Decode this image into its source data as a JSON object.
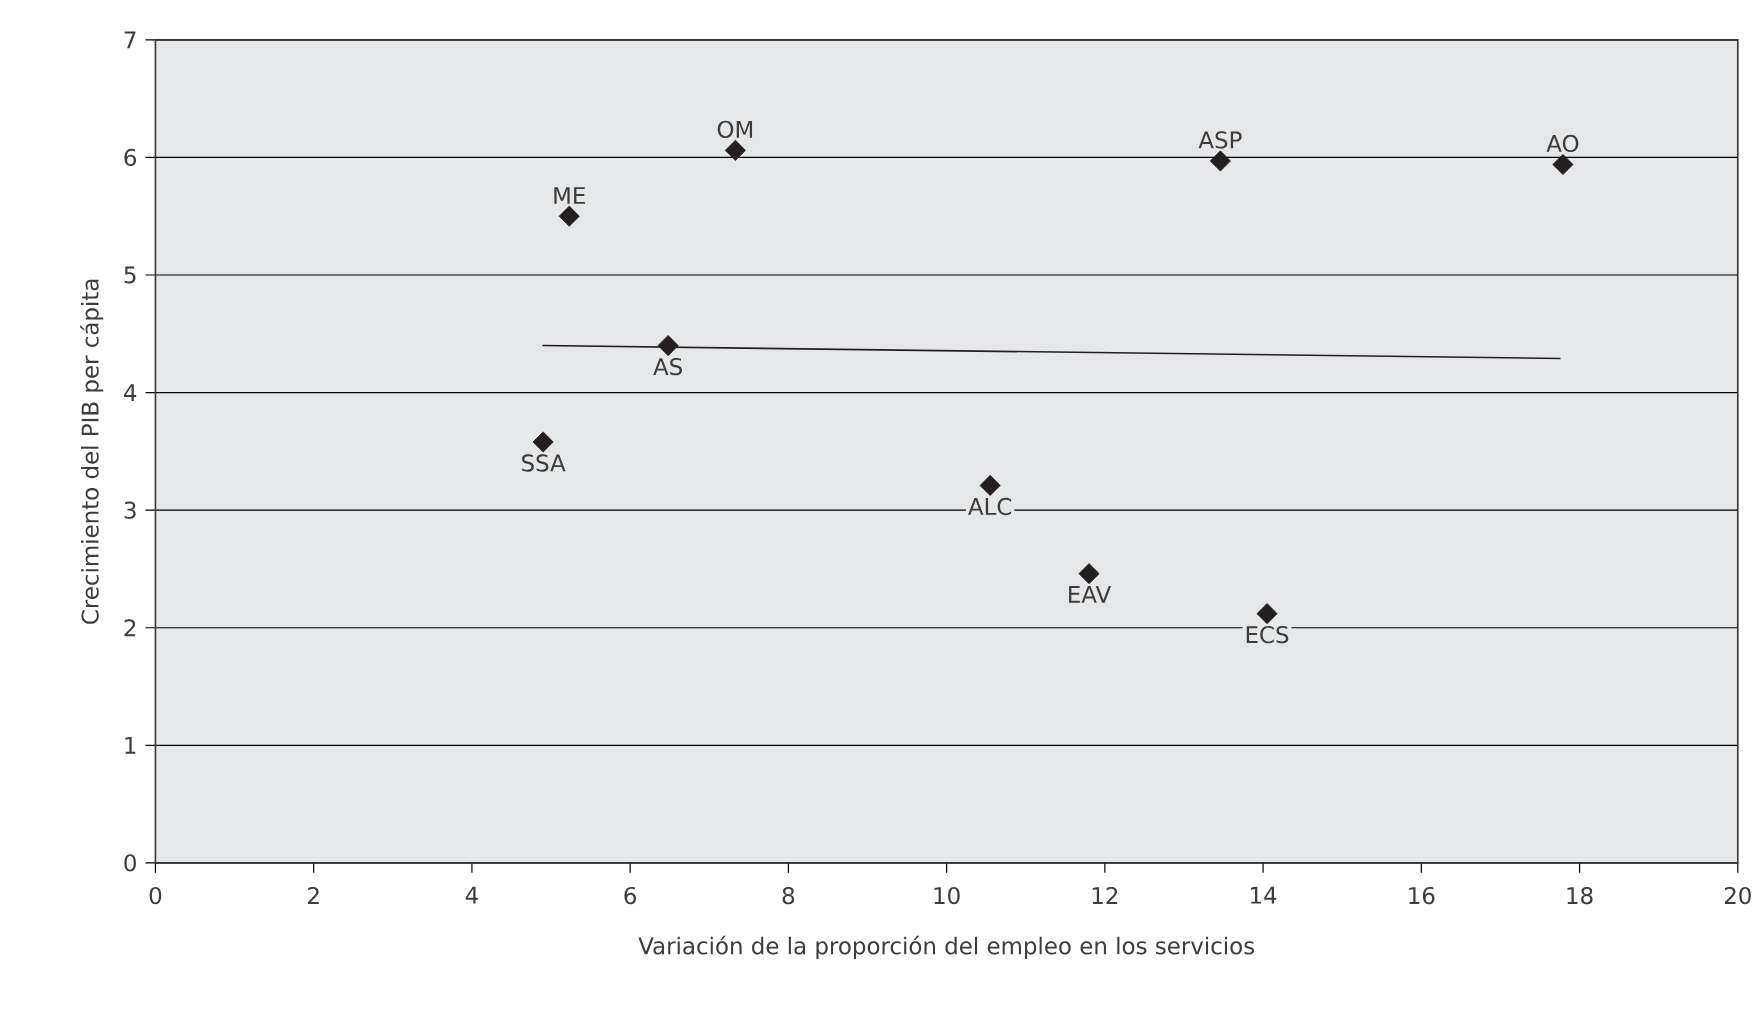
{
  "chart_data": {
    "type": "scatter",
    "xlabel": "Variación de la proporción del empleo en los servicios",
    "ylabel": "Crecimiento del PIB per cápita",
    "series": [
      {
        "color": "#231f20",
        "marker": "diamond",
        "x": [
          5.23,
          7.33,
          6.48,
          4.9,
          13.46,
          17.79,
          10.55,
          11.8,
          14.05
        ],
        "values": [
          5.5,
          6.06,
          4.4,
          3.58,
          5.97,
          5.94,
          3.21,
          2.46,
          2.12
        ]
      },
      {
        "type": "line",
        "color": "#231f20",
        "x": [
          4.89,
          17.76
        ],
        "values": [
          4.4,
          4.29
        ]
      }
    ],
    "annotations": [
      {
        "text": "ME",
        "x": 5.23,
        "y": 5.5
      },
      {
        "text": "OM",
        "x": 7.33,
        "y": 6.06
      },
      {
        "text": "AS",
        "x": 6.48,
        "y": 4.4
      },
      {
        "text": "SSA",
        "x": 4.9,
        "y": 3.58
      },
      {
        "text": "ASP",
        "x": 13.46,
        "y": 5.97
      },
      {
        "text": "AO",
        "x": 17.79,
        "y": 5.94
      },
      {
        "text": "ALC",
        "x": 10.55,
        "y": 3.21
      },
      {
        "text": "EAV",
        "x": 11.8,
        "y": 2.46
      },
      {
        "text": "ECS",
        "x": 14.05,
        "y": 2.12
      }
    ],
    "xlim": [
      0,
      20
    ],
    "ylim": [
      0,
      7
    ],
    "xticks": [
      0,
      2,
      4,
      6,
      8,
      10,
      12,
      14,
      16,
      18,
      20
    ],
    "yticks": [
      0,
      1,
      2,
      3,
      4,
      5,
      6,
      7
    ],
    "grid": "y"
  }
}
